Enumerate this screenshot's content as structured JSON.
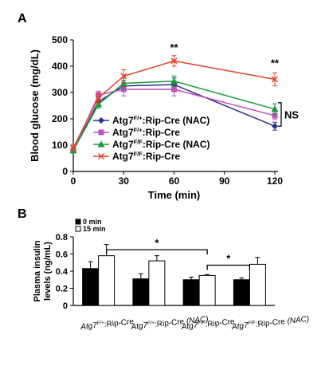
{
  "colors": {
    "nac_het": "#2b2f8f",
    "het": "#c04fc0",
    "nac_ff": "#1a9a3a",
    "ff": "#e0452b",
    "bar_0min": "#000000",
    "bar_15min": "#ffffff"
  },
  "chart_data": [
    {
      "panel": "A",
      "type": "line",
      "xlabel": "Time (min)",
      "ylabel": "Blood glucose (mg/dL)",
      "xlim": [
        0,
        120
      ],
      "ylim": [
        0,
        500
      ],
      "x_ticks": [
        0,
        30,
        60,
        90,
        120
      ],
      "y_ticks": [
        0,
        100,
        200,
        300,
        400,
        500
      ],
      "grid": false,
      "legend_position": "lower-left",
      "x": [
        0,
        15,
        30,
        60,
        120
      ],
      "series": [
        {
          "key": "nac_het",
          "genotype": "Atg7",
          "sup": "F/+",
          "suffix": ":Rip-Cre (NAC)",
          "marker": "diamond",
          "values": [
            80,
            265,
            325,
            330,
            172
          ],
          "errors": [
            10,
            15,
            20,
            25,
            15
          ]
        },
        {
          "key": "het",
          "genotype": "Atg7",
          "sup": "F/+",
          "suffix": ":Rip-Cre",
          "marker": "square",
          "values": [
            80,
            290,
            312,
            312,
            212
          ],
          "errors": [
            10,
            15,
            25,
            25,
            15
          ]
        },
        {
          "key": "nac_ff",
          "genotype": "Atg7",
          "sup": "F/F",
          "suffix": ":Rip-Cre (NAC)",
          "marker": "triangle",
          "values": [
            80,
            255,
            335,
            343,
            237
          ],
          "errors": [
            10,
            15,
            20,
            20,
            20
          ]
        },
        {
          "key": "ff",
          "genotype": "Atg7",
          "sup": "F/F",
          "suffix": ":Rip-Cre",
          "marker": "x",
          "values": [
            90,
            280,
            362,
            420,
            350
          ],
          "errors": [
            10,
            20,
            25,
            20,
            25
          ]
        }
      ],
      "annotations": [
        {
          "x": 60,
          "y": 470,
          "text": "**"
        },
        {
          "x": 120,
          "y": 410,
          "text": "**"
        },
        {
          "x_from_series": "ns_bracket",
          "text": "NS"
        }
      ]
    },
    {
      "panel": "B",
      "type": "bar",
      "ylabel_lines": [
        "Plasma insulin",
        "levels (ng/mL)"
      ],
      "ylim": [
        0,
        0.8
      ],
      "y_ticks": [
        0,
        0.2,
        0.4,
        0.6,
        0.8
      ],
      "y_tick_labels": [
        "0",
        "0.2",
        "0.4",
        "0.6",
        "0.8"
      ],
      "grid": false,
      "legend_position": "top-left",
      "series": [
        {
          "name": "0 min",
          "key": "bar_0min",
          "values": [
            0.43,
            0.31,
            0.3,
            0.3
          ],
          "errors": [
            0.08,
            0.06,
            0.03,
            0.02
          ]
        },
        {
          "name": "15 min",
          "key": "bar_15min",
          "values": [
            0.58,
            0.52,
            0.35,
            0.48
          ],
          "errors": [
            0.13,
            0.06,
            0.01,
            0.08
          ]
        }
      ],
      "categories": [
        {
          "genotype": "Atg7",
          "sup": "F/+",
          "suffix": ":Rip-Cre",
          "ital": ""
        },
        {
          "genotype": "Atg7",
          "sup": "F/+",
          "suffix": ":Rip-Cre ",
          "ital": "(NAC)"
        },
        {
          "genotype": "Atg7",
          "sup": "F/F",
          "suffix": ":Rip-Cre",
          "ital": ""
        },
        {
          "genotype": "Atg7",
          "sup": "F/F",
          "suffix": ":Rip-Cre ",
          "ital": "(NAC)"
        }
      ],
      "significance": [
        {
          "from_category": 0,
          "to_category": 2,
          "text": "*"
        },
        {
          "from_category": 2,
          "to_category": 3,
          "text": "*"
        }
      ]
    }
  ]
}
